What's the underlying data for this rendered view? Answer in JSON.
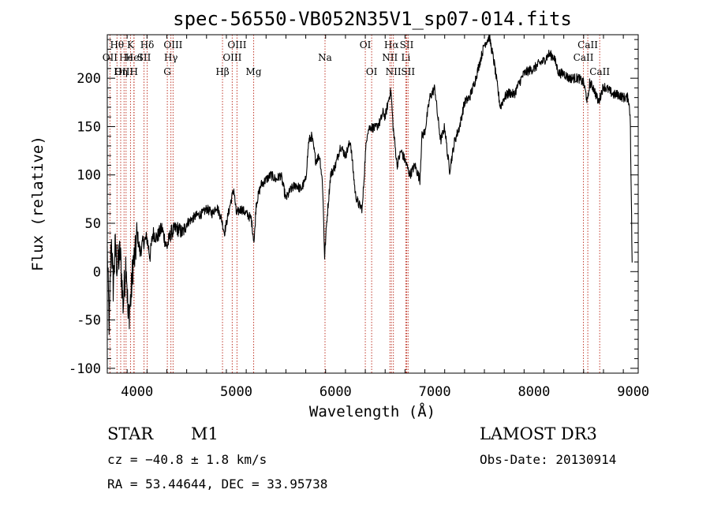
{
  "chart_data": {
    "type": "line",
    "title": "spec-56550-VB052N35V1_sp07-014.fits",
    "xlabel": "Wavelength (Å)",
    "ylabel": "Flux (relative)",
    "xlim": [
      3700,
      9050
    ],
    "ylim": [
      -105,
      245
    ],
    "x_ticks": [
      4000,
      5000,
      6000,
      7000,
      8000,
      9000
    ],
    "x_tick_labels": [
      "4000",
      "5000",
      "6000",
      "7000",
      "8000",
      "9000"
    ],
    "y_ticks": [
      -100,
      -50,
      0,
      50,
      100,
      150,
      200
    ],
    "y_tick_labels": [
      "-100",
      "-50",
      "0",
      "50",
      "100",
      "150",
      "200"
    ],
    "spectrum_anchors": [
      [
        3700,
        20
      ],
      [
        3720,
        -60
      ],
      [
        3740,
        35
      ],
      [
        3760,
        -15
      ],
      [
        3780,
        25
      ],
      [
        3800,
        5
      ],
      [
        3830,
        20
      ],
      [
        3860,
        -35
      ],
      [
        3890,
        15
      ],
      [
        3910,
        -50
      ],
      [
        3940,
        -25
      ],
      [
        3960,
        10
      ],
      [
        3980,
        15
      ],
      [
        4000,
        40
      ],
      [
        4030,
        20
      ],
      [
        4060,
        30
      ],
      [
        4100,
        35
      ],
      [
        4130,
        15
      ],
      [
        4160,
        40
      ],
      [
        4200,
        35
      ],
      [
        4250,
        45
      ],
      [
        4300,
        25
      ],
      [
        4340,
        40
      ],
      [
        4400,
        45
      ],
      [
        4460,
        40
      ],
      [
        4500,
        50
      ],
      [
        4560,
        55
      ],
      [
        4600,
        58
      ],
      [
        4660,
        60
      ],
      [
        4700,
        65
      ],
      [
        4760,
        60
      ],
      [
        4800,
        68
      ],
      [
        4850,
        55
      ],
      [
        4880,
        40
      ],
      [
        4920,
        60
      ],
      [
        4950,
        75
      ],
      [
        4975,
        85
      ],
      [
        5000,
        60
      ],
      [
        5050,
        65
      ],
      [
        5100,
        60
      ],
      [
        5150,
        55
      ],
      [
        5180,
        30
      ],
      [
        5200,
        70
      ],
      [
        5250,
        90
      ],
      [
        5300,
        95
      ],
      [
        5350,
        100
      ],
      [
        5400,
        95
      ],
      [
        5450,
        100
      ],
      [
        5500,
        75
      ],
      [
        5550,
        85
      ],
      [
        5600,
        90
      ],
      [
        5650,
        85
      ],
      [
        5700,
        95
      ],
      [
        5730,
        135
      ],
      [
        5760,
        140
      ],
      [
        5800,
        115
      ],
      [
        5840,
        120
      ],
      [
        5870,
        90
      ],
      [
        5890,
        15
      ],
      [
        5910,
        50
      ],
      [
        5950,
        100
      ],
      [
        6000,
        110
      ],
      [
        6050,
        130
      ],
      [
        6100,
        120
      ],
      [
        6150,
        135
      ],
      [
        6200,
        80
      ],
      [
        6230,
        70
      ],
      [
        6270,
        65
      ],
      [
        6300,
        120
      ],
      [
        6320,
        145
      ],
      [
        6350,
        150
      ],
      [
        6400,
        148
      ],
      [
        6450,
        155
      ],
      [
        6480,
        165
      ],
      [
        6500,
        160
      ],
      [
        6530,
        175
      ],
      [
        6550,
        185
      ],
      [
        6560,
        185
      ],
      [
        6580,
        150
      ],
      [
        6620,
        110
      ],
      [
        6660,
        125
      ],
      [
        6700,
        115
      ],
      [
        6750,
        100
      ],
      [
        6800,
        110
      ],
      [
        6850,
        95
      ],
      [
        6870,
        140
      ],
      [
        6900,
        145
      ],
      [
        6950,
        180
      ],
      [
        7000,
        190
      ],
      [
        7030,
        160
      ],
      [
        7060,
        135
      ],
      [
        7100,
        150
      ],
      [
        7130,
        120
      ],
      [
        7150,
        105
      ],
      [
        7200,
        135
      ],
      [
        7250,
        150
      ],
      [
        7300,
        175
      ],
      [
        7350,
        180
      ],
      [
        7400,
        195
      ],
      [
        7450,
        215
      ],
      [
        7500,
        235
      ],
      [
        7550,
        243
      ],
      [
        7600,
        215
      ],
      [
        7640,
        185
      ],
      [
        7660,
        170
      ],
      [
        7700,
        180
      ],
      [
        7750,
        185
      ],
      [
        7800,
        183
      ],
      [
        7850,
        195
      ],
      [
        7900,
        205
      ],
      [
        7950,
        208
      ],
      [
        8000,
        210
      ],
      [
        8050,
        215
      ],
      [
        8100,
        218
      ],
      [
        8150,
        225
      ],
      [
        8200,
        222
      ],
      [
        8250,
        205
      ],
      [
        8300,
        205
      ],
      [
        8350,
        200
      ],
      [
        8400,
        200
      ],
      [
        8450,
        200
      ],
      [
        8500,
        195
      ],
      [
        8540,
        175
      ],
      [
        8560,
        195
      ],
      [
        8600,
        190
      ],
      [
        8650,
        175
      ],
      [
        8700,
        192
      ],
      [
        8750,
        188
      ],
      [
        8800,
        183
      ],
      [
        8850,
        183
      ],
      [
        8900,
        180
      ],
      [
        8950,
        180
      ],
      [
        8970,
        160
      ],
      [
        8990,
        0
      ]
    ],
    "lines": [
      {
        "label": "Hθ",
        "wave": 3798,
        "row": 1
      },
      {
        "label": "OII",
        "wave": 3727,
        "row": 2
      },
      {
        "label": "OIII",
        "wave": 3869,
        "row": 3
      },
      {
        "label": "He",
        "wave": 3889,
        "row": 2
      },
      {
        "label": "Hη",
        "wave": 3835,
        "row": 3
      },
      {
        "label": "K",
        "wave": 3934,
        "row": 1
      },
      {
        "label": "HeI",
        "wave": 3970,
        "row": 2
      },
      {
        "label": "H",
        "wave": 3968,
        "row": 3
      },
      {
        "label": "SII",
        "wave": 4070,
        "row": 2
      },
      {
        "label": "Hδ",
        "wave": 4102,
        "row": 1
      },
      {
        "label": "OIII",
        "wave": 4363,
        "row": 1
      },
      {
        "label": "Hγ",
        "wave": 4341,
        "row": 2
      },
      {
        "label": "G",
        "wave": 4305,
        "row": 3
      },
      {
        "label": "Hβ",
        "wave": 4861,
        "row": 3
      },
      {
        "label": "OIII",
        "wave": 5007,
        "row": 1
      },
      {
        "label": "OIII",
        "wave": 4959,
        "row": 2
      },
      {
        "label": "Mg",
        "wave": 5175,
        "row": 3
      },
      {
        "label": "Na",
        "wave": 5894,
        "row": 2
      },
      {
        "label": "OI",
        "wave": 6300,
        "row": 1
      },
      {
        "label": "OI",
        "wave": 6364,
        "row": 3
      },
      {
        "label": "Hα",
        "wave": 6563,
        "row": 1
      },
      {
        "label": "NII",
        "wave": 6548,
        "row": 2
      },
      {
        "label": "NII",
        "wave": 6583,
        "row": 3
      },
      {
        "label": "SII",
        "wave": 6717,
        "row": 1
      },
      {
        "label": "Li",
        "wave": 6708,
        "row": 2
      },
      {
        "label": "SII",
        "wave": 6731,
        "row": 3
      },
      {
        "label": "CaII",
        "wave": 8542,
        "row": 1
      },
      {
        "label": "CaII",
        "wave": 8498,
        "row": 2
      },
      {
        "label": "CaII",
        "wave": 8662,
        "row": 3
      }
    ]
  },
  "info": {
    "object_type": "STAR",
    "subclass": "M1",
    "survey": "LAMOST DR3",
    "redshift": "cz = −40.8 ± 1.8 km/s",
    "obs_date": "Obs-Date: 20130914",
    "coords": "RA =  53.44644, DEC =  33.95738"
  }
}
